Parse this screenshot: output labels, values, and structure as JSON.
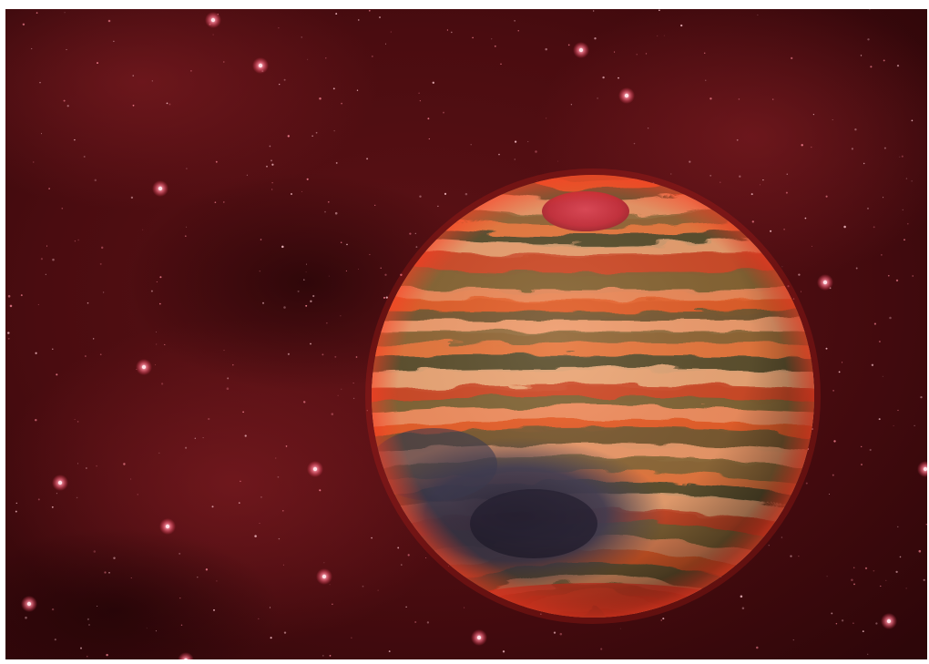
{
  "scene": {
    "subject": "banded-planet",
    "palette": {
      "space_dark": "#2a0508",
      "space_mid": "#5a1015",
      "space_glow": "#7a1a1f",
      "star": "#ff9aa8",
      "planet_band_orange": "#e8602a",
      "planet_band_olive": "#6b5a35",
      "planet_band_peach": "#f0a070",
      "planet_polar_cap": "#d8404a",
      "planet_storm": "#3a3448",
      "planet_limb_glow": "#ff3020"
    }
  }
}
